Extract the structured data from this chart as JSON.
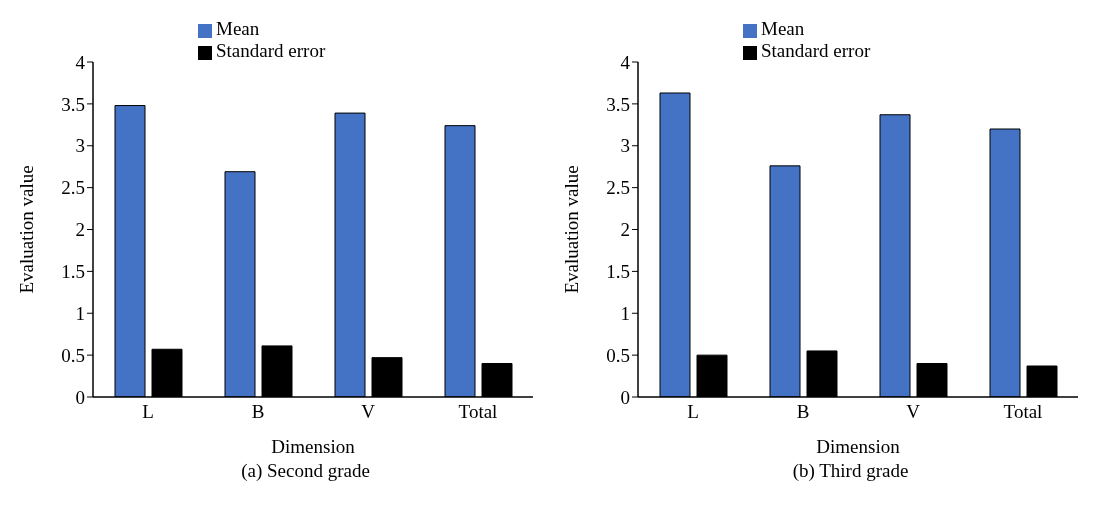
{
  "chart_data": [
    {
      "type": "bar",
      "title": "(a) Second grade",
      "xlabel": "Dimension",
      "ylabel": "Evaluation value",
      "categories": [
        "L",
        "B",
        "V",
        "Total"
      ],
      "series": [
        {
          "name": "Mean",
          "color": "#4472c4",
          "values": [
            3.48,
            2.69,
            3.39,
            3.24
          ]
        },
        {
          "name": "Standard error",
          "color": "#000000",
          "values": [
            0.57,
            0.61,
            0.47,
            0.4
          ]
        }
      ],
      "ylim": [
        0,
        4
      ],
      "yticks": [
        0,
        0.5,
        1,
        1.5,
        2,
        2.5,
        3,
        3.5,
        4
      ],
      "legend": "top"
    },
    {
      "type": "bar",
      "title": "(b) Third grade",
      "xlabel": "Dimension",
      "ylabel": "Evaluation value",
      "categories": [
        "L",
        "B",
        "V",
        "Total"
      ],
      "series": [
        {
          "name": "Mean",
          "color": "#4472c4",
          "values": [
            3.63,
            2.76,
            3.37,
            3.2
          ]
        },
        {
          "name": "Standard error",
          "color": "#000000",
          "values": [
            0.5,
            0.55,
            0.4,
            0.37
          ]
        }
      ],
      "ylim": [
        0,
        4
      ],
      "yticks": [
        0,
        0.5,
        1,
        1.5,
        2,
        2.5,
        3,
        3.5,
        4
      ],
      "legend": "top"
    }
  ]
}
